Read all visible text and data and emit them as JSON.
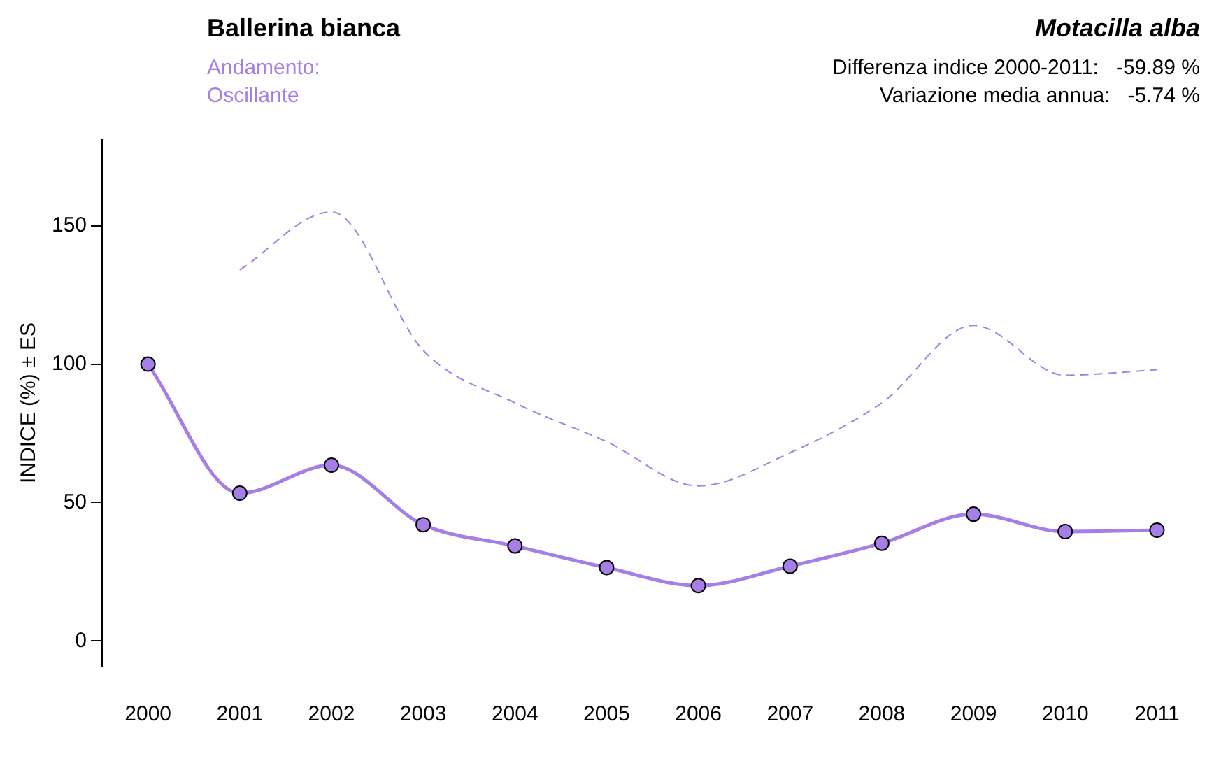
{
  "chart_data": {
    "type": "line",
    "title": "Ballerina bianca",
    "subtitle": "Motacilla alba",
    "ylabel": "INDICE (%) ± ES",
    "annotations": [
      "Andamento:",
      "Oscillante",
      "Differenza indice 2000-2011:   -59.89 %",
      "Variazione media annua:   -5.74 %"
    ],
    "categories": [
      "2000",
      "2001",
      "2002",
      "2003",
      "2004",
      "2005",
      "2006",
      "2007",
      "2008",
      "2009",
      "2010",
      "2011"
    ],
    "series": [
      {
        "color": "#a57ee6",
        "values": [
          100,
          53.4,
          63.5,
          42,
          34.3,
          26.5,
          20,
          27,
          35.3,
          45.8,
          39.5,
          40
        ]
      },
      {
        "color": "#a57ee6",
        "line_style": "dashed",
        "marker": "none",
        "values": [
          null,
          134,
          155,
          105,
          86,
          72,
          56,
          68,
          86,
          114,
          96,
          98
        ]
      }
    ],
    "ylim": [
      -9,
      181
    ],
    "yticks": [
      0,
      50,
      100,
      150
    ],
    "grid": false,
    "legend": false,
    "marker": "circle",
    "line_style": "solid"
  }
}
